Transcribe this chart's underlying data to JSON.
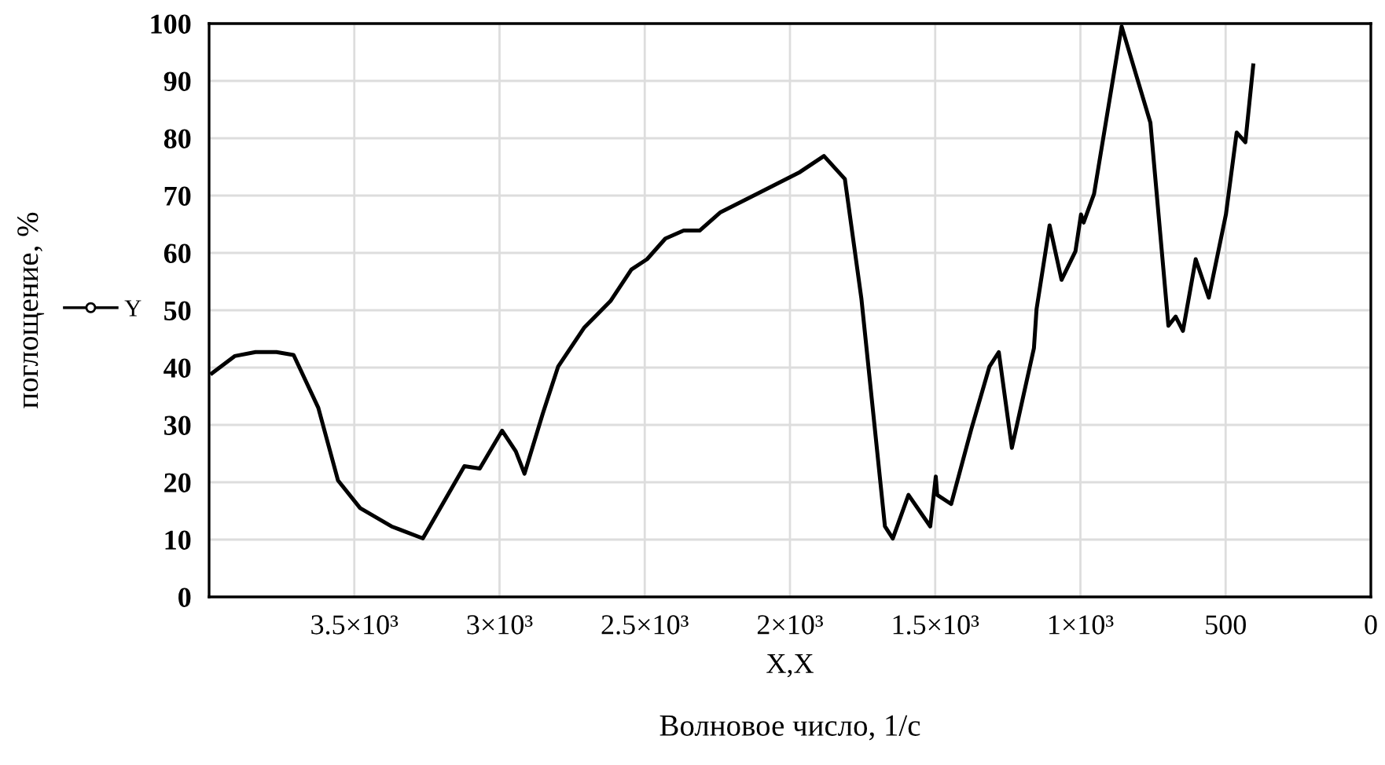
{
  "chart_data": {
    "type": "line",
    "xlabel": "X,X",
    "ylabel": "поглощение, %",
    "annotations": [
      "Волновое число, 1/с"
    ],
    "xlim": [
      4000,
      0
    ],
    "xticks": [
      {
        "value": 3500,
        "label": "3.5×10³"
      },
      {
        "value": 3000,
        "label": "3×10³"
      },
      {
        "value": 2500,
        "label": "2.5×10³"
      },
      {
        "value": 2000,
        "label": "2×10³"
      },
      {
        "value": 1500,
        "label": "1.5×10³"
      },
      {
        "value": 1000,
        "label": "1×10³"
      },
      500,
      0
    ],
    "ylim": [
      0,
      100
    ],
    "yticks": [
      0,
      10,
      20,
      30,
      40,
      50,
      60,
      70,
      80,
      90,
      100
    ],
    "grid": true,
    "legend": "left",
    "series": [
      {
        "name": "Y",
        "color": "#000000",
        "x": [
          3990,
          3912,
          3840,
          3768,
          3709,
          3624,
          3556,
          3480,
          3372,
          3264,
          3121,
          3068,
          2991,
          2944,
          2914,
          2851,
          2798,
          2708,
          2618,
          2546,
          2492,
          2429,
          2366,
          2311,
          2239,
          2113,
          1969,
          1883,
          1811,
          1754,
          1673,
          1646,
          1592,
          1517,
          1498,
          1493,
          1445,
          1376,
          1313,
          1281,
          1236,
          1160,
          1151,
          1106,
          1065,
          1017,
          998,
          989,
          953,
          858,
          759,
          697,
          672,
          647,
          603,
          558,
          499,
          462,
          432,
          405
        ],
        "values": [
          39,
          42,
          42.7,
          42.7,
          42.2,
          33,
          20.3,
          15.5,
          12.3,
          10.2,
          22.8,
          22.4,
          29,
          25.4,
          21.5,
          32,
          40.2,
          47,
          51.6,
          57.1,
          58.9,
          62.5,
          63.9,
          63.9,
          67.1,
          70.3,
          74,
          76.9,
          72.9,
          52,
          12.3,
          10.2,
          17.8,
          12.3,
          21,
          17.8,
          16.2,
          29.2,
          40.2,
          42.7,
          26,
          43.4,
          50.2,
          64.8,
          55.3,
          60.3,
          66.7,
          65.3,
          70.3,
          99.5,
          82.7,
          47.3,
          48.9,
          46.4,
          58.9,
          52.2,
          66.7,
          81,
          79.3,
          92.7
        ]
      }
    ]
  }
}
